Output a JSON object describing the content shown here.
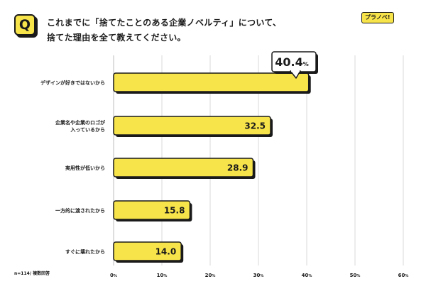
{
  "question_badge": "Q",
  "title": {
    "line1": "これまでに「捨てたことのある企業ノベルティ」について、",
    "line2": "捨てた理由を全て教えてください。"
  },
  "brand_logo": "プラノベ!",
  "note": "n=114/ 複数回答",
  "chart_data": {
    "type": "bar",
    "orientation": "horizontal",
    "categories": [
      [
        "デザインが好きではないから"
      ],
      [
        "企業名や企業のロゴが",
        "入っているから"
      ],
      [
        "実用性が低いから"
      ],
      [
        "一方的に渡されたから"
      ],
      [
        "すぐに壊れたから"
      ]
    ],
    "values": [
      40.4,
      32.5,
      28.9,
      15.8,
      14.0
    ],
    "value_labels": [
      "40.4",
      "32.5",
      "28.9",
      "15.8",
      "14.0"
    ],
    "highlight_suffix": "%",
    "xlim": [
      0,
      60
    ],
    "xticks": [
      {
        "value": 0,
        "label": "0"
      },
      {
        "value": 10,
        "label": "10"
      },
      {
        "value": 20,
        "label": "20"
      },
      {
        "value": 30,
        "label": "30"
      },
      {
        "value": 40,
        "label": "40"
      },
      {
        "value": 50,
        "label": "50"
      },
      {
        "value": 60,
        "label": "60"
      }
    ],
    "tick_suffix": "%",
    "grid": true,
    "colors": {
      "bar": "#f7e34a",
      "outline": "#1a1a1a",
      "grid": "#d8d8d8"
    }
  }
}
